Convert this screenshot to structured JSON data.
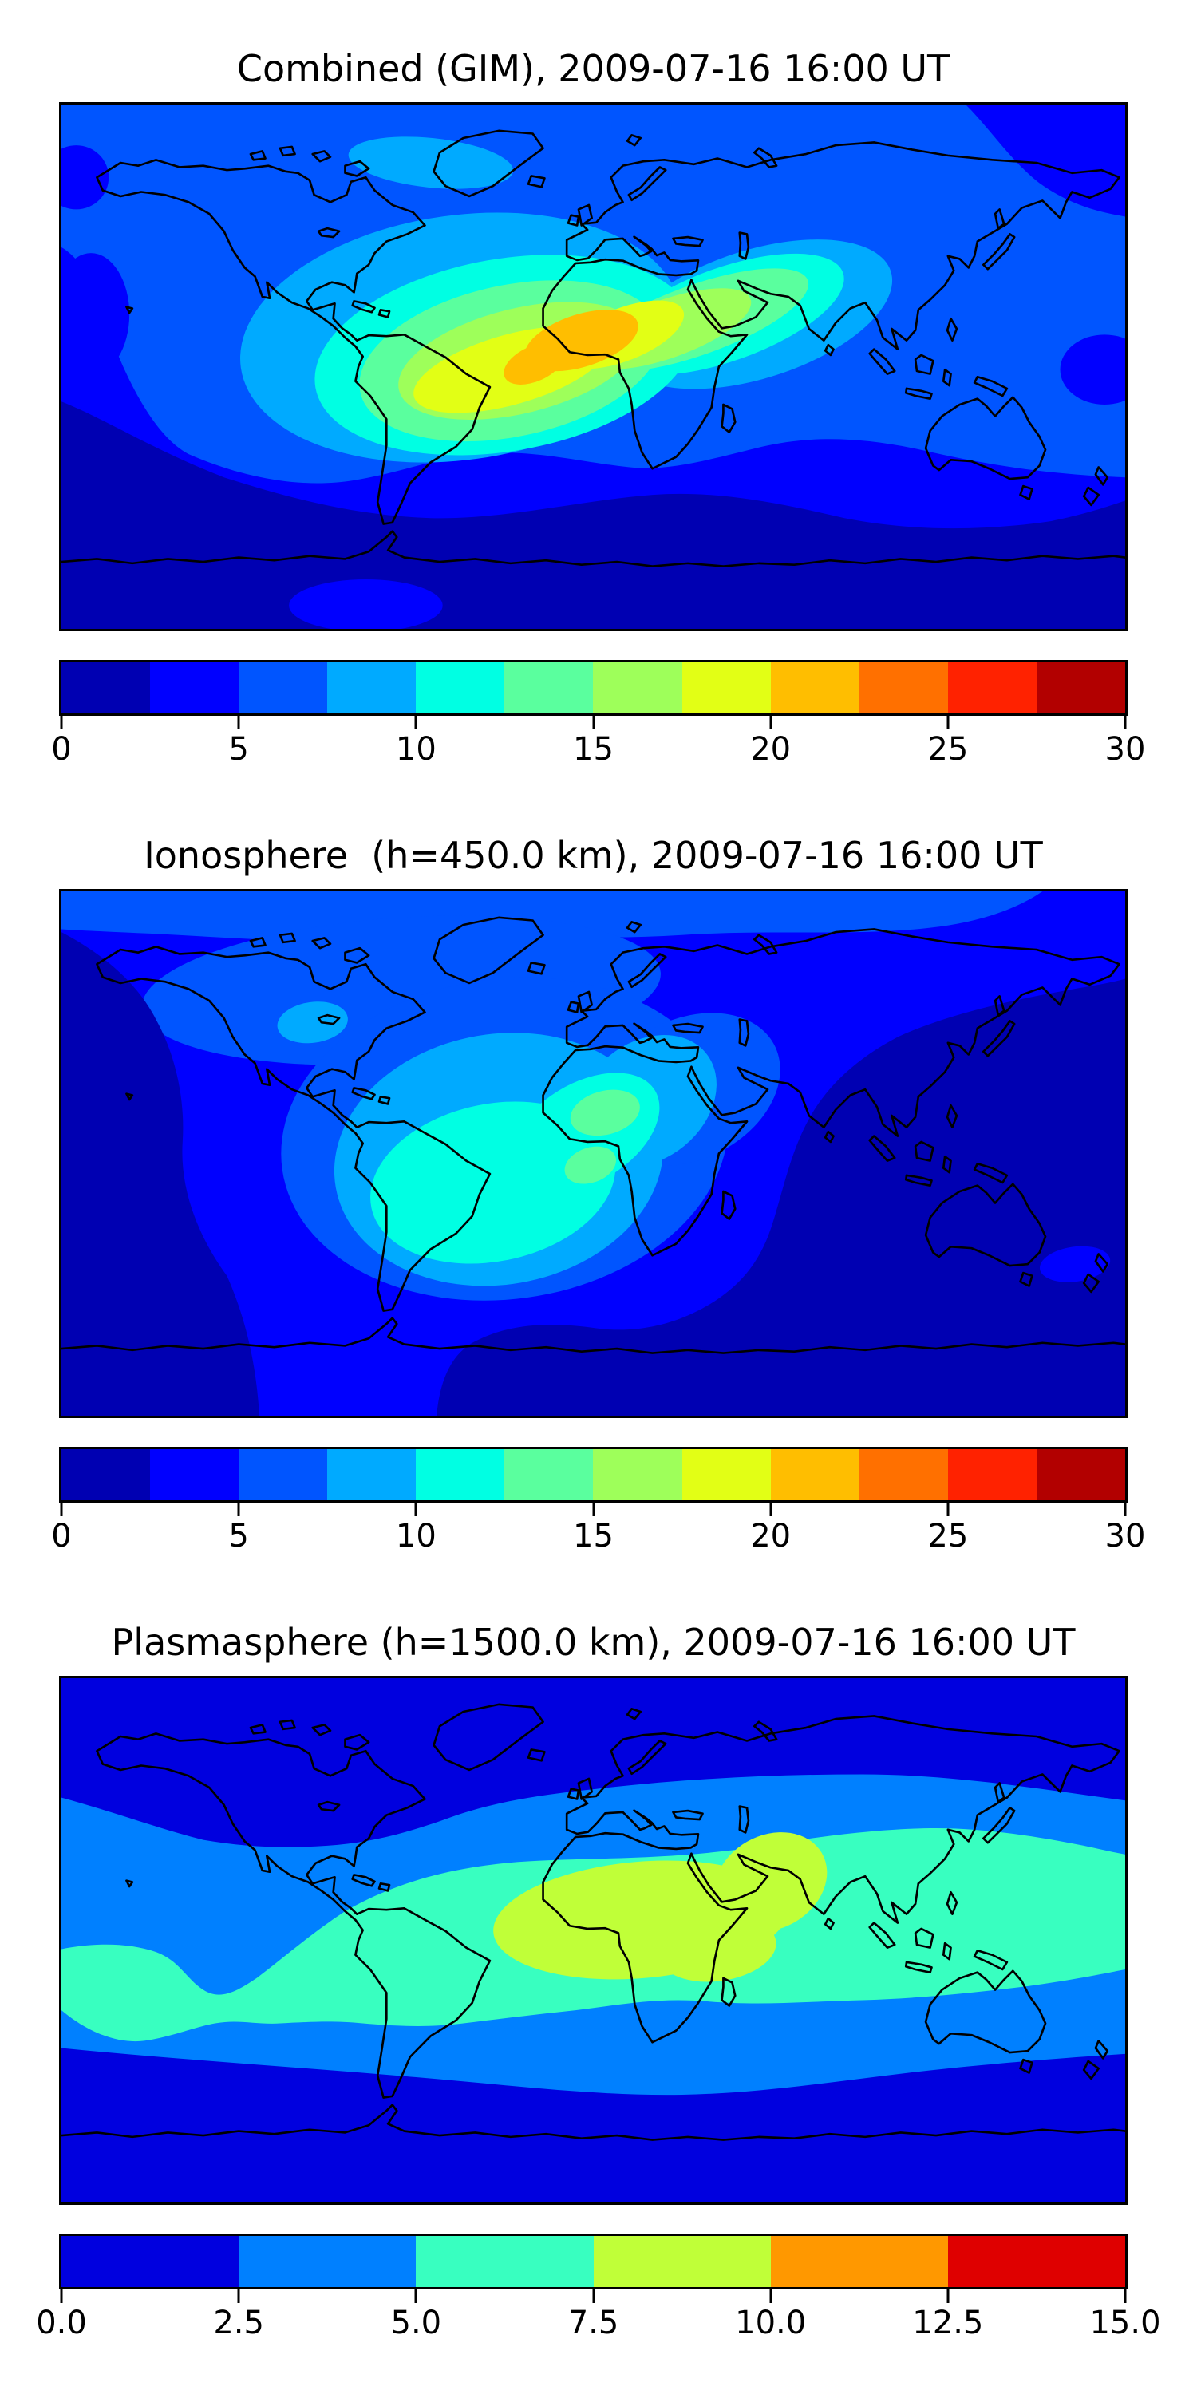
{
  "figure": {
    "background": "#ffffff",
    "panels": [
      {
        "id": "combined",
        "title": "Combined (GIM), 2009-07-16 16:00 UT",
        "colorbar": {
          "min": 0,
          "max": 30,
          "step": 2.5,
          "tick_labels": [
            "0",
            "5",
            "10",
            "15",
            "20",
            "25",
            "30"
          ],
          "segment_colors": [
            "#0000B2",
            "#0000FF",
            "#0055FF",
            "#00AAFF",
            "#00FFE3",
            "#5AFF9E",
            "#9EFF5A",
            "#E2FF15",
            "#FFBE00",
            "#FF7000",
            "#FF2200",
            "#B20000"
          ]
        }
      },
      {
        "id": "ionosphere",
        "title": "Ionosphere  (h=450.0 km), 2009-07-16 16:00 UT",
        "colorbar": {
          "min": 0,
          "max": 30,
          "step": 2.5,
          "tick_labels": [
            "0",
            "5",
            "10",
            "15",
            "20",
            "25",
            "30"
          ],
          "segment_colors": [
            "#0000B2",
            "#0000FF",
            "#0055FF",
            "#00AAFF",
            "#00FFE3",
            "#5AFF9E",
            "#9EFF5A",
            "#E2FF15",
            "#FFBE00",
            "#FF7000",
            "#FF2200",
            "#B20000"
          ]
        }
      },
      {
        "id": "plasmasphere",
        "title": "Plasmasphere (h=1500.0 km), 2009-07-16 16:00 UT",
        "colorbar": {
          "min": 0,
          "max": 15,
          "step": 2.5,
          "tick_labels": [
            "0.0",
            "2.5",
            "5.0",
            "7.5",
            "10.0",
            "12.5",
            "15.0"
          ],
          "segment_colors": [
            "#0000DF",
            "#0080FF",
            "#38FFC0",
            "#C0FF38",
            "#FF9800",
            "#DF0000"
          ]
        }
      }
    ]
  },
  "chart_data": [
    {
      "type": "heatmap",
      "subtype": "filled contour map over world coastlines (equirectangular projection)",
      "title": "Combined (GIM), 2009-07-16 16:00 UT",
      "xlabel": "",
      "ylabel": "",
      "lon_range": [
        -180,
        180
      ],
      "lat_range": [
        -90,
        90
      ],
      "grid": false,
      "coastlines": true,
      "colormap": "jet, discretized into 12 bins",
      "value_range": [
        0,
        30
      ],
      "contour_interval": 2.5,
      "colorbar_ticks": [
        0,
        5,
        10,
        15,
        20,
        25,
        30
      ],
      "bin_colors": [
        "#0000B2",
        "#0000FF",
        "#0055FF",
        "#00AAFF",
        "#00FFE3",
        "#5AFF9E",
        "#9EFF5A",
        "#E2FF15",
        "#FFBE00",
        "#FF7000",
        "#FF2200",
        "#B20000"
      ],
      "features": [
        {
          "label": "peak",
          "value_bin": "20.0-22.5",
          "location": "West Africa / eastern equatorial Atlantic, about 25W-20E, 5S-18N"
        },
        {
          "label": "enhancement 10-20",
          "location": "tilted oval from central South America (~25S) northeast across the Atlantic and Sahara toward Arabia / NW India (~30N)"
        },
        {
          "label": "moderate 7.5-10",
          "location": "southern N. America, Caribbean, most of Africa, Middle East, India"
        },
        {
          "label": "minimum",
          "value_bin": "0-2.5",
          "location": "southern high latitudes (50-80S) and far west Pacific edge near the equator"
        }
      ]
    },
    {
      "type": "heatmap",
      "subtype": "filled contour map over world coastlines (equirectangular projection)",
      "title": "Ionosphere  (h=450.0 km), 2009-07-16 16:00 UT",
      "xlabel": "",
      "ylabel": "",
      "lon_range": [
        -180,
        180
      ],
      "lat_range": [
        -90,
        90
      ],
      "grid": false,
      "coastlines": true,
      "colormap": "jet, discretized into 12 bins",
      "value_range": [
        0,
        30
      ],
      "contour_interval": 2.5,
      "colorbar_ticks": [
        0,
        5,
        10,
        15,
        20,
        25,
        30
      ],
      "bin_colors": [
        "#0000B2",
        "#0000FF",
        "#0055FF",
        "#00AAFF",
        "#00FFE3",
        "#5AFF9E",
        "#9EFF5A",
        "#E2FF15",
        "#FFBE00",
        "#FF7000",
        "#FF2200",
        "#B20000"
      ],
      "features": [
        {
          "label": "peak",
          "value_bin": "12.5-15.0",
          "location": "two small spots: over the Sahara (~0E, 8-20N) and near the Gulf of Guinea (~0E, 8S)"
        },
        {
          "label": "enhancement 10-12.5",
          "value_bin": "10-12.5",
          "location": "equatorial Atlantic between Brazil and Africa"
        },
        {
          "label": "moderate 7.5-10",
          "location": "central Atlantic sector, ~75W-25E, 40N-35S; small spot over US Midwest"
        },
        {
          "label": "minimum",
          "value_bin": "0-2.5",
          "location": "NE Pacific, Indian Ocean / SE Asia, and southern high latitudes"
        }
      ]
    },
    {
      "type": "heatmap",
      "subtype": "filled contour map over world coastlines (equirectangular projection)",
      "title": "Plasmasphere (h=1500.0 km), 2009-07-16 16:00 UT",
      "xlabel": "",
      "ylabel": "",
      "lon_range": [
        -180,
        180
      ],
      "lat_range": [
        -90,
        90
      ],
      "grid": false,
      "coastlines": true,
      "colormap": "jet, discretized into 6 bins",
      "value_range": [
        0,
        15
      ],
      "contour_interval": 2.5,
      "colorbar_ticks": [
        0.0,
        2.5,
        5.0,
        7.5,
        10.0,
        12.5,
        15.0
      ],
      "bin_colors": [
        "#0000DF",
        "#0080FF",
        "#38FFC0",
        "#C0FF38",
        "#FF9800",
        "#DF0000"
      ],
      "features": [
        {
          "label": "peak",
          "value_bin": "7.5-10.0",
          "location": "broad band over Africa-Arabia-west India, ~35W-75E, 18S-32N"
        },
        {
          "label": "band 5.0-7.5",
          "location": "low-latitude band around the globe, widest over Africa/Asia; separate patch in central Pacific (~180-140W, 0-30S)"
        },
        {
          "label": "band 2.5-5.0",
          "location": "mid-latitude band ~50N to 45S following the magnetic equator tilt"
        },
        {
          "label": "minimum",
          "value_bin": "0-2.5",
          "location": "poleward of about 50 degrees in both hemispheres"
        }
      ]
    }
  ]
}
